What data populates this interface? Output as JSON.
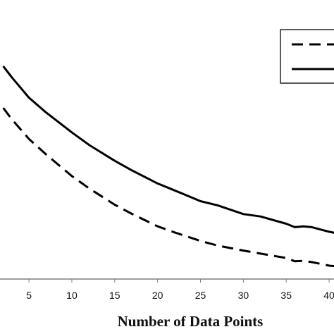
{
  "chart_data": {
    "type": "line",
    "title": "",
    "xlabel": "Number of Data Points",
    "ylabel": "",
    "xlim": [
      2,
      43
    ],
    "ylim": [
      0,
      1
    ],
    "x_ticks": [
      5,
      10,
      15,
      20,
      25,
      30,
      35,
      40
    ],
    "grid": false,
    "legend": {
      "position": "top-right",
      "entries": []
    },
    "series": [
      {
        "style": "dashed",
        "color": "#000000",
        "x": [
          2,
          3,
          5,
          7,
          10,
          12,
          15,
          17,
          20,
          22,
          25,
          27,
          30,
          32,
          35,
          36,
          37,
          38,
          40,
          42,
          43
        ],
        "y": [
          0.764,
          0.712,
          0.622,
          0.551,
          0.452,
          0.396,
          0.321,
          0.279,
          0.222,
          0.194,
          0.155,
          0.134,
          0.111,
          0.097,
          0.077,
          0.062,
          0.064,
          0.058,
          0.042,
          0.035,
          0.033
        ]
      },
      {
        "style": "solid",
        "color": "#000000",
        "x": [
          2,
          3,
          5,
          7,
          10,
          12,
          15,
          17,
          20,
          22,
          25,
          27,
          30,
          32,
          35,
          36,
          37,
          38,
          40,
          42,
          43
        ],
        "y": [
          0.955,
          0.904,
          0.811,
          0.743,
          0.652,
          0.595,
          0.522,
          0.478,
          0.418,
          0.386,
          0.337,
          0.318,
          0.278,
          0.267,
          0.234,
          0.218,
          0.222,
          0.218,
          0.197,
          0.181,
          0.18
        ]
      }
    ]
  }
}
